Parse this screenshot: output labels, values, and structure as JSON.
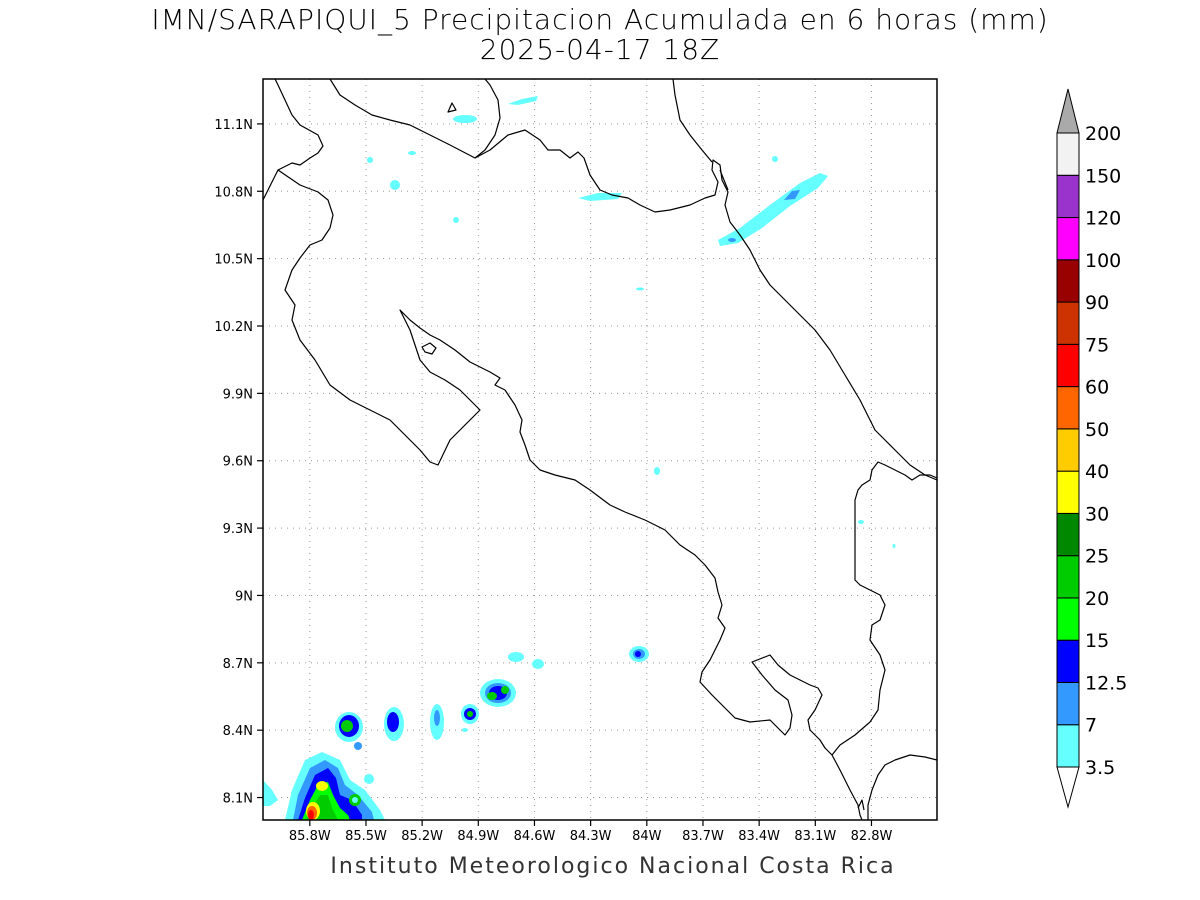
{
  "header": {
    "title": "IMN/SARAPIQUI_5 Precipitacion Acumulada en 6 horas (mm)",
    "subtitle": "2025-04-17 18Z"
  },
  "footer": {
    "credit": "Instituto Meteorologico Nacional Costa Rica"
  },
  "map": {
    "lon_range": [
      -86.05,
      -82.45
    ],
    "lat_range": [
      8.0,
      11.3
    ],
    "lon_ticks": [
      "85.8W",
      "85.5W",
      "85.2W",
      "84.9W",
      "84.6W",
      "84.3W",
      "84W",
      "83.7W",
      "83.4W",
      "83.1W",
      "82.8W"
    ],
    "lat_ticks": [
      "8.1N",
      "8.4N",
      "8.7N",
      "9N",
      "9.3N",
      "9.6N",
      "9.9N",
      "10.2N",
      "10.5N",
      "10.8N",
      "11.1N"
    ],
    "gridlines": "dotted",
    "coastline_color": "#000000"
  },
  "colorbar": {
    "labels": [
      "3.5",
      "7",
      "12.5",
      "15",
      "20",
      "25",
      "30",
      "40",
      "50",
      "60",
      "75",
      "90",
      "100",
      "120",
      "150",
      "200"
    ],
    "colors": [
      "#ffffff",
      "#66ffff",
      "#3399ff",
      "#0000ff",
      "#00ff00",
      "#00cc00",
      "#008800",
      "#ffff00",
      "#ffcc00",
      "#ff6600",
      "#ff0000",
      "#cc3300",
      "#990000",
      "#ff00ff",
      "#9933cc",
      "#f2f2f2",
      "#aaaaaa"
    ]
  }
}
